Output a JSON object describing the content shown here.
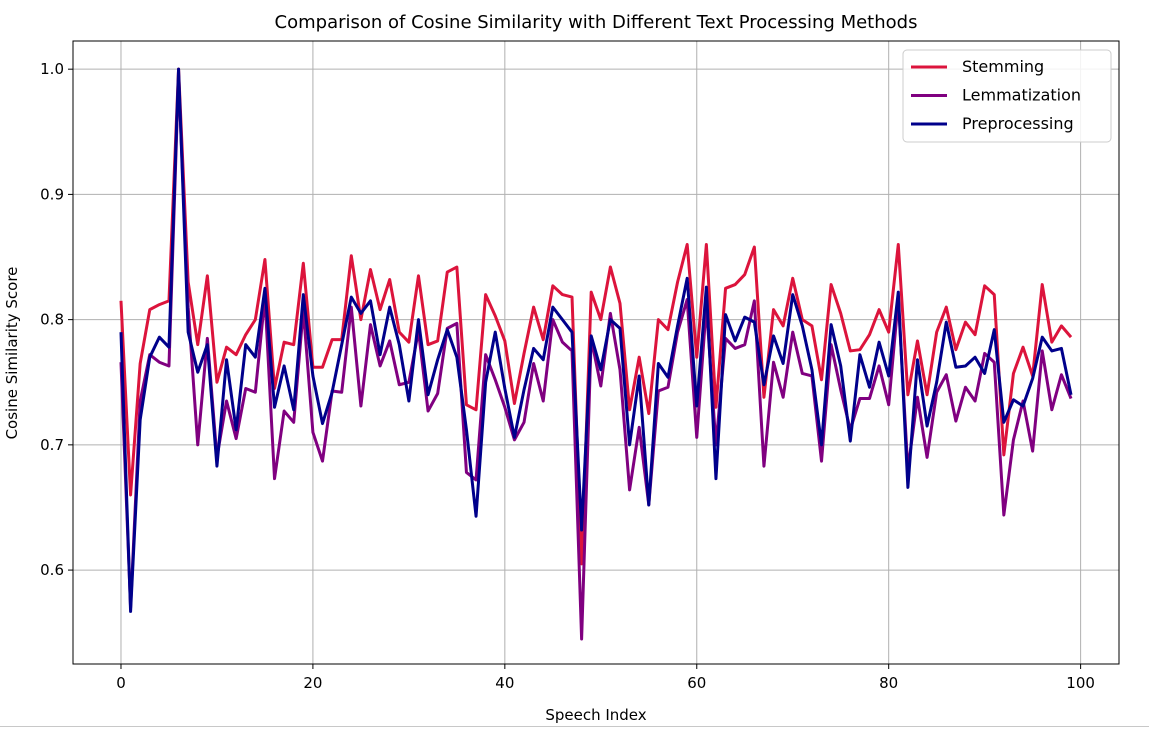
{
  "chart_data": {
    "type": "line",
    "title": "Comparison of Cosine Similarity with Different Text Processing Methods",
    "xlabel": "Speech Index",
    "ylabel": "Cosine Similarity Score",
    "xlim": [
      -5,
      104
    ],
    "ylim": [
      0.525,
      1.0225
    ],
    "xticks": [
      0,
      20,
      40,
      60,
      80,
      100
    ],
    "xtick_labels": [
      "0",
      "20",
      "40",
      "60",
      "80",
      "100"
    ],
    "yticks": [
      0.6,
      0.7,
      0.8,
      0.9,
      1.0
    ],
    "ytick_labels": [
      "0.6",
      "0.7",
      "0.8",
      "0.9",
      "1.0"
    ],
    "grid": true,
    "legend": "upper right",
    "x": [
      0,
      1,
      2,
      3,
      4,
      5,
      6,
      7,
      8,
      9,
      10,
      11,
      12,
      13,
      14,
      15,
      16,
      17,
      18,
      19,
      20,
      21,
      22,
      23,
      24,
      25,
      26,
      27,
      28,
      29,
      30,
      31,
      32,
      33,
      34,
      35,
      36,
      37,
      38,
      39,
      40,
      41,
      42,
      43,
      44,
      45,
      46,
      47,
      48,
      49,
      50,
      51,
      52,
      53,
      54,
      55,
      56,
      57,
      58,
      59,
      60,
      61,
      62,
      63,
      64,
      65,
      66,
      67,
      68,
      69,
      70,
      71,
      72,
      73,
      74,
      75,
      76,
      77,
      78,
      79,
      80,
      81,
      82,
      83,
      84,
      85,
      86,
      87,
      88,
      89,
      90,
      91,
      92,
      93,
      94,
      95,
      96,
      97,
      98,
      99
    ],
    "series": [
      {
        "name": "Stemming",
        "color": "#dc143c",
        "values": [
          0.815,
          0.66,
          0.765,
          0.808,
          0.812,
          0.815,
          1.0,
          0.83,
          0.78,
          0.835,
          0.75,
          0.778,
          0.772,
          0.788,
          0.8,
          0.848,
          0.745,
          0.782,
          0.78,
          0.845,
          0.762,
          0.762,
          0.784,
          0.784,
          0.851,
          0.8,
          0.84,
          0.808,
          0.832,
          0.79,
          0.782,
          0.835,
          0.78,
          0.783,
          0.838,
          0.842,
          0.732,
          0.728,
          0.82,
          0.803,
          0.783,
          0.733,
          0.773,
          0.81,
          0.784,
          0.827,
          0.82,
          0.818,
          0.605,
          0.822,
          0.8,
          0.842,
          0.813,
          0.728,
          0.77,
          0.725,
          0.8,
          0.792,
          0.83,
          0.86,
          0.77,
          0.86,
          0.73,
          0.825,
          0.828,
          0.836,
          0.858,
          0.738,
          0.808,
          0.795,
          0.833,
          0.8,
          0.795,
          0.752,
          0.828,
          0.805,
          0.775,
          0.776,
          0.788,
          0.808,
          0.79,
          0.86,
          0.74,
          0.783,
          0.74,
          0.79,
          0.81,
          0.776,
          0.798,
          0.788,
          0.827,
          0.82,
          0.692,
          0.757,
          0.778,
          0.755,
          0.828,
          0.782,
          0.795,
          0.786
        ]
      },
      {
        "name": "Lemmatization",
        "color": "#800080",
        "values": [
          0.766,
          0.57,
          0.735,
          0.772,
          0.766,
          0.763,
          0.995,
          0.81,
          0.7,
          0.785,
          0.69,
          0.735,
          0.705,
          0.745,
          0.742,
          0.818,
          0.673,
          0.727,
          0.718,
          0.808,
          0.71,
          0.687,
          0.743,
          0.742,
          0.81,
          0.731,
          0.796,
          0.763,
          0.783,
          0.748,
          0.75,
          0.791,
          0.727,
          0.741,
          0.793,
          0.797,
          0.678,
          0.672,
          0.772,
          0.752,
          0.73,
          0.704,
          0.718,
          0.765,
          0.735,
          0.8,
          0.782,
          0.775,
          0.545,
          0.785,
          0.747,
          0.805,
          0.76,
          0.664,
          0.714,
          0.652,
          0.743,
          0.746,
          0.79,
          0.816,
          0.706,
          0.811,
          0.7,
          0.785,
          0.777,
          0.78,
          0.815,
          0.683,
          0.766,
          0.738,
          0.79,
          0.757,
          0.755,
          0.687,
          0.78,
          0.744,
          0.712,
          0.737,
          0.737,
          0.763,
          0.732,
          0.816,
          0.68,
          0.738,
          0.69,
          0.742,
          0.756,
          0.719,
          0.746,
          0.735,
          0.773,
          0.766,
          0.644,
          0.704,
          0.735,
          0.695,
          0.775,
          0.728,
          0.756,
          0.737
        ]
      },
      {
        "name": "Preprocessing",
        "color": "#00008b",
        "values": [
          0.79,
          0.567,
          0.72,
          0.77,
          0.786,
          0.778,
          1.0,
          0.79,
          0.758,
          0.78,
          0.683,
          0.768,
          0.712,
          0.78,
          0.77,
          0.825,
          0.73,
          0.763,
          0.728,
          0.82,
          0.755,
          0.717,
          0.742,
          0.78,
          0.818,
          0.805,
          0.815,
          0.772,
          0.81,
          0.78,
          0.735,
          0.8,
          0.74,
          0.768,
          0.792,
          0.77,
          0.712,
          0.643,
          0.75,
          0.79,
          0.745,
          0.706,
          0.744,
          0.777,
          0.768,
          0.81,
          0.8,
          0.79,
          0.632,
          0.787,
          0.76,
          0.8,
          0.793,
          0.7,
          0.755,
          0.652,
          0.765,
          0.754,
          0.795,
          0.833,
          0.731,
          0.826,
          0.673,
          0.804,
          0.783,
          0.802,
          0.798,
          0.748,
          0.787,
          0.765,
          0.82,
          0.795,
          0.76,
          0.7,
          0.796,
          0.763,
          0.703,
          0.772,
          0.746,
          0.782,
          0.755,
          0.822,
          0.666,
          0.768,
          0.715,
          0.75,
          0.798,
          0.762,
          0.763,
          0.77,
          0.757,
          0.792,
          0.718,
          0.736,
          0.731,
          0.753,
          0.786,
          0.775,
          0.777,
          0.74
        ]
      }
    ]
  }
}
